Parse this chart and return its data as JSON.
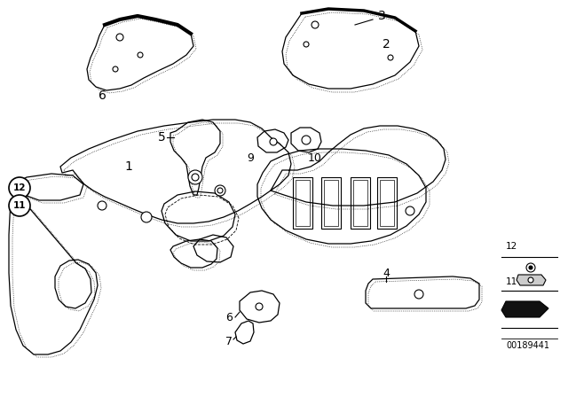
{
  "background_color": "#ffffff",
  "image_id": "00189441",
  "line_color": "#000000",
  "label_fontsize": 9,
  "lw": 0.9,
  "fig_w": 6.4,
  "fig_h": 4.48,
  "dpi": 100
}
